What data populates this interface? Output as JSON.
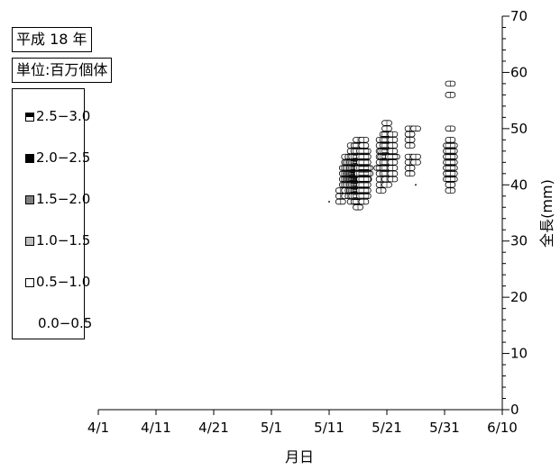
{
  "title": "平成 18 年",
  "unit_label": "単位:百万個体",
  "legend": [
    {
      "label": "2.5−3.0",
      "style": "checker",
      "color": "#000000"
    },
    {
      "label": "2.0−2.5",
      "style": "solid",
      "color": "#000000"
    },
    {
      "label": "1.5−2.0",
      "style": "solid",
      "color": "#808080"
    },
    {
      "label": "1.0−1.5",
      "style": "solid",
      "color": "#c0c0c0"
    },
    {
      "label": "0.5−1.0",
      "style": "solid",
      "color": "#ffffff"
    },
    {
      "label": "0.0−0.5",
      "style": "none",
      "color": ""
    }
  ],
  "chart_data": {
    "type": "heatmap",
    "xlabel": "月日",
    "ylabel": "全長(mm)",
    "x_ticks": [
      "4/1",
      "4/11",
      "4/21",
      "5/1",
      "5/11",
      "5/21",
      "5/31",
      "6/10"
    ],
    "y_ticks": [
      0,
      10,
      20,
      30,
      40,
      50,
      60,
      70
    ],
    "xlim": [
      "4/1",
      "6/10"
    ],
    "ylim": [
      0,
      70
    ],
    "grid": false,
    "series": [
      {
        "date": "5/11",
        "lengths": [
          37
        ]
      },
      {
        "date": "5/13",
        "lengths": [
          37,
          38,
          39
        ]
      },
      {
        "date": "5/14",
        "lengths": [
          38,
          39,
          40,
          41,
          42,
          43,
          44,
          45
        ]
      },
      {
        "date": "5/15",
        "lengths": [
          37,
          38,
          39,
          40,
          41,
          42,
          43,
          44,
          45,
          46,
          47
        ]
      },
      {
        "date": "5/16",
        "lengths": [
          36,
          37,
          38,
          39,
          40,
          41,
          42,
          43,
          44,
          45,
          46,
          47,
          48
        ]
      },
      {
        "date": "5/17",
        "lengths": [
          37,
          38,
          39,
          40,
          41,
          42,
          43,
          44,
          45,
          46,
          47,
          48
        ]
      },
      {
        "date": "5/20",
        "lengths": [
          39,
          40,
          41,
          42,
          43,
          44,
          45,
          46,
          47,
          48
        ]
      },
      {
        "date": "5/21",
        "lengths": [
          40,
          41,
          42,
          43,
          44,
          45,
          46,
          47,
          48,
          49,
          50,
          51
        ]
      },
      {
        "date": "5/22",
        "lengths": [
          41,
          42,
          43,
          44,
          45,
          46,
          47,
          48,
          49
        ]
      },
      {
        "date": "5/25",
        "lengths": [
          42,
          43,
          44,
          45,
          47,
          48,
          49,
          50
        ]
      },
      {
        "date": "5/26",
        "lengths": [
          40,
          44,
          45,
          50
        ]
      },
      {
        "date": "6/1",
        "lengths": [
          39,
          40,
          41,
          42,
          43,
          44,
          45,
          46,
          47,
          48,
          50,
          56,
          58
        ]
      }
    ],
    "density_levels": {
      "5/11": [
        0
      ],
      "5/13": [
        1,
        1,
        1
      ],
      "5/14": [
        1,
        1,
        2,
        2,
        2,
        2,
        1,
        1
      ],
      "5/15": [
        1,
        2,
        2,
        3,
        3,
        3,
        3,
        3,
        2,
        1,
        1
      ],
      "5/16": [
        1,
        2,
        3,
        4,
        4,
        5,
        5,
        4,
        4,
        3,
        2,
        2,
        1
      ],
      "5/17": [
        1,
        2,
        2,
        2,
        2,
        3,
        3,
        2,
        2,
        2,
        1,
        1
      ],
      "5/20": [
        1,
        1,
        1,
        1,
        2,
        1,
        1,
        1,
        1,
        1
      ],
      "5/21": [
        1,
        1,
        2,
        2,
        2,
        3,
        3,
        2,
        2,
        2,
        1,
        1
      ],
      "5/22": [
        1,
        1,
        1,
        1,
        2,
        1,
        1,
        1,
        1
      ],
      "5/25": [
        1,
        1,
        1,
        1,
        1,
        1,
        1,
        1
      ],
      "5/26": [
        0,
        1,
        1,
        1
      ],
      "6/1": [
        1,
        1,
        2,
        2,
        2,
        2,
        2,
        2,
        2,
        1,
        1,
        1,
        1
      ]
    }
  }
}
